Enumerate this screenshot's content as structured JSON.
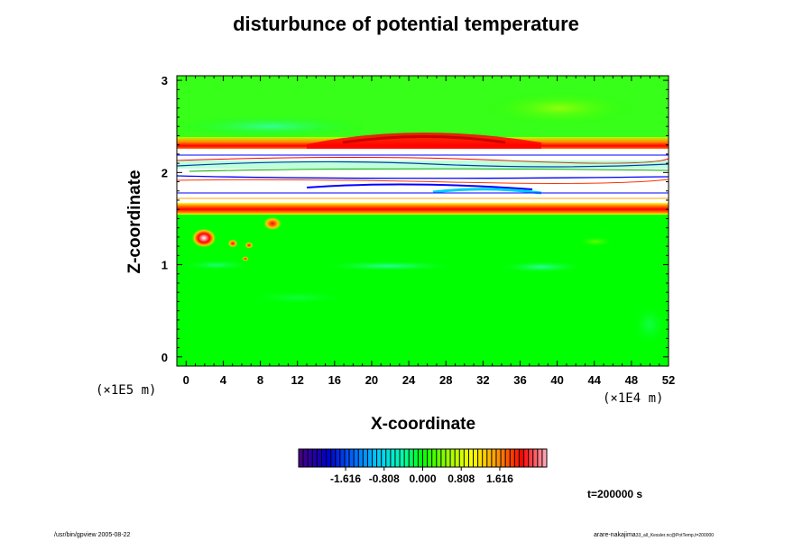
{
  "chart_data": {
    "type": "heatmap",
    "title": "disturbunce of potential temperature",
    "xlabel": "X-coordinate",
    "ylabel": "Z-coordinate",
    "x_ticks": [
      "0",
      "4",
      "8",
      "12",
      "16",
      "20",
      "24",
      "28",
      "32",
      "36",
      "40",
      "44",
      "48",
      "52"
    ],
    "y_ticks": [
      "0",
      "1",
      "2",
      "3"
    ],
    "xlim": [
      -1,
      52
    ],
    "ylim": [
      -0.1,
      3.05
    ],
    "x_unit": "(×1E4 m)",
    "y_unit": "(×1E5 m)",
    "colorbar": {
      "ticks": [
        "-1.616",
        "-0.808",
        "0.000",
        "0.808",
        "1.616"
      ],
      "tick_values": [
        -1.616,
        -0.808,
        0.0,
        0.808,
        1.616
      ],
      "range": [
        -2.6,
        2.6
      ]
    },
    "time_label": "t=200000 s",
    "features": [
      {
        "kind": "band",
        "z_range": [
          1.6,
          1.7
        ],
        "value": 2.0
      },
      {
        "kind": "band",
        "z_range": [
          2.27,
          2.4
        ],
        "value": 2.2
      },
      {
        "kind": "saturated_layer",
        "z_range": [
          1.7,
          2.27
        ],
        "value": "out of range"
      },
      {
        "kind": "plume",
        "x": 2,
        "z": 1.32,
        "value": 2.5
      },
      {
        "kind": "plume",
        "x": 10,
        "z": 1.45,
        "value": 1.8
      }
    ]
  },
  "footer": {
    "left": "/usr/bin/gpview 2005-08-22",
    "right_main": "arare-nakajima",
    "right_sub": "33_all_Kessler.nc@PotTemp,t=200000"
  }
}
